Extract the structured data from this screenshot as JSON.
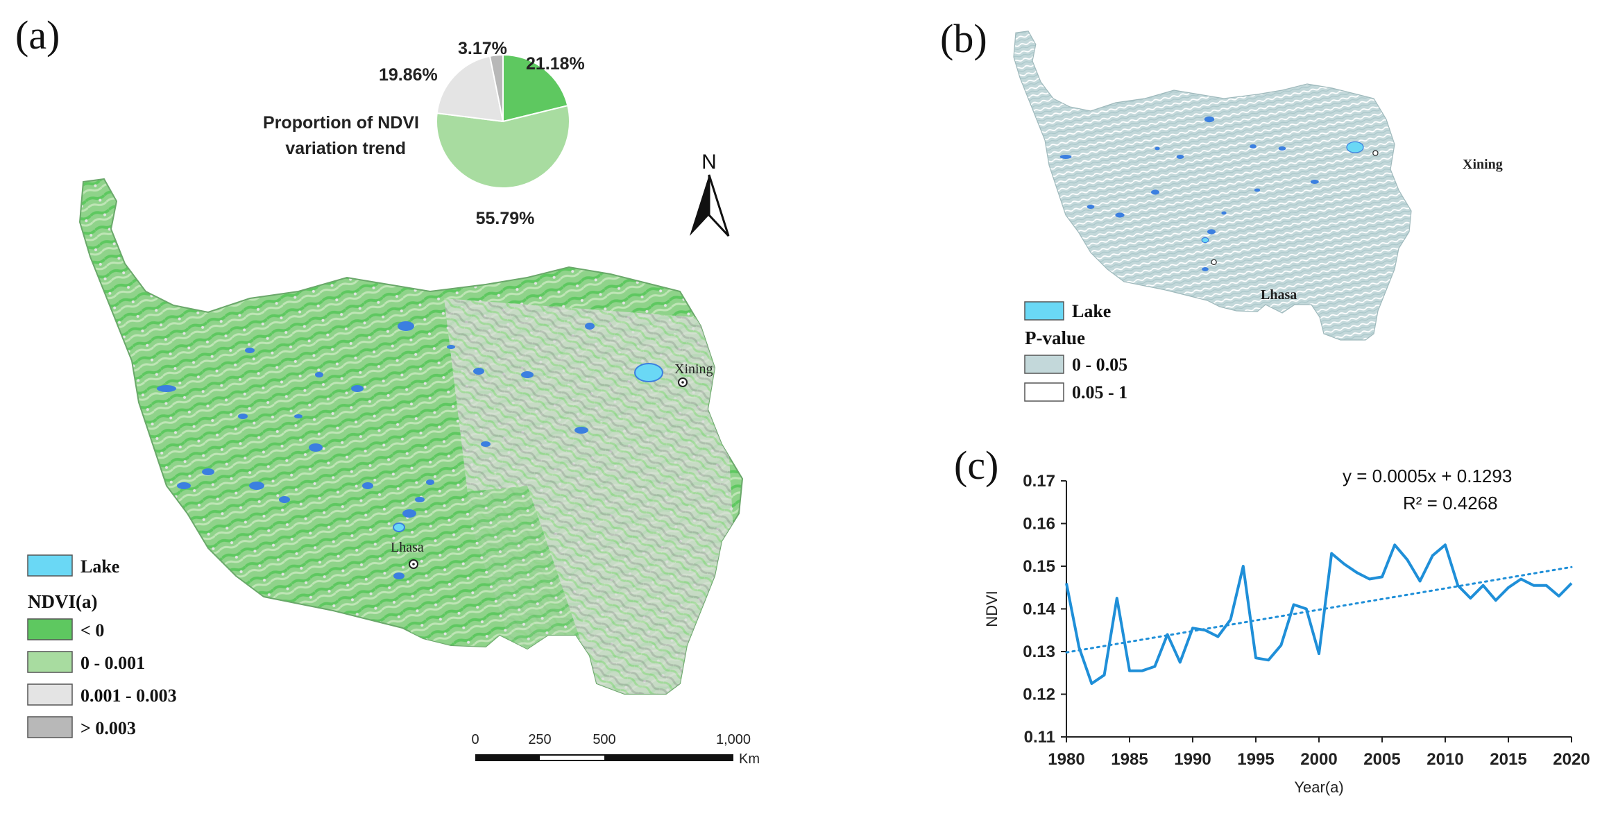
{
  "panels": {
    "a": {
      "label": "(a)",
      "pie": {
        "title_line1": "Proportion of NDVI",
        "title_line2": "variation trend",
        "slices": [
          {
            "label": "21.18%",
            "value": 21.18,
            "color": "#5ec860"
          },
          {
            "label": "55.79%",
            "value": 55.79,
            "color": "#a8dca0"
          },
          {
            "label": "19.86%",
            "value": 19.86,
            "color": "#e4e4e4"
          },
          {
            "label": "3.17%",
            "value": 3.17,
            "color": "#b8b8b8"
          }
        ]
      },
      "north_label": "N",
      "cities": {
        "xining": "Xining",
        "lhasa": "Lhasa"
      },
      "legend": {
        "lake_label": "Lake",
        "title": "NDVI(a)",
        "items": [
          {
            "label": "< 0",
            "color": "#5ec860"
          },
          {
            "label": "0 - 0.001",
            "color": "#a8dca0"
          },
          {
            "label": "0.001 - 0.003",
            "color": "#e4e4e4"
          },
          {
            "label": "> 0.003",
            "color": "#b8b8b8"
          }
        ]
      },
      "scale_bar": {
        "ticks": [
          "0",
          "250",
          "500",
          "1,000"
        ],
        "unit": "Km"
      }
    },
    "b": {
      "label": "(b)",
      "cities": {
        "xining": "Xining",
        "lhasa": "Lhasa"
      },
      "legend": {
        "lake_label": "Lake",
        "title": "P-value",
        "items": [
          {
            "label": "0 - 0.05",
            "color": "#c3d8da"
          },
          {
            "label": "0.05 - 1",
            "color": "#ffffff"
          }
        ]
      }
    },
    "c": {
      "label": "(c)"
    }
  },
  "colors": {
    "lake": "#6ad8f5",
    "lake_dark": "#3b7fe0",
    "line": "#1f8fd8"
  },
  "chart_data": {
    "type": "line",
    "title": "",
    "xlabel": "Year(a)",
    "ylabel": "NDVI",
    "xlim": [
      1980,
      2020
    ],
    "ylim": [
      0.11,
      0.17
    ],
    "x_ticks": [
      "1980",
      "1985",
      "1990",
      "1995",
      "2000",
      "2005",
      "2010",
      "2015",
      "2020"
    ],
    "y_ticks": [
      "0.11",
      "0.12",
      "0.13",
      "0.14",
      "0.15",
      "0.16",
      "0.17"
    ],
    "equation": "y = 0.0005x + 0.1293",
    "r_squared": "R² = 0.4268",
    "trend_intercept": 0.1293,
    "trend_slope": 0.0005,
    "series": [
      {
        "x": [
          1980,
          1981,
          1982,
          1983,
          1984,
          1985,
          1986,
          1987,
          1988,
          1989,
          1990,
          1991,
          1992,
          1993,
          1994,
          1995,
          1996,
          1997,
          1998,
          1999,
          2000,
          2001,
          2002,
          2003,
          2004,
          2005,
          2006,
          2007,
          2008,
          2009,
          2010,
          2011,
          2012,
          2013,
          2014,
          2015,
          2016,
          2017,
          2018,
          2019,
          2020
        ],
        "values": [
          0.146,
          0.131,
          0.1225,
          0.1245,
          0.1425,
          0.1255,
          0.1255,
          0.1265,
          0.134,
          0.1275,
          0.1355,
          0.135,
          0.1335,
          0.1375,
          0.15,
          0.1285,
          0.128,
          0.1315,
          0.141,
          0.14,
          0.1295,
          0.153,
          0.1505,
          0.1485,
          0.147,
          0.1475,
          0.155,
          0.1515,
          0.1465,
          0.1525,
          0.155,
          0.1455,
          0.1425,
          0.1455,
          0.142,
          0.145,
          0.147,
          0.1455,
          0.1455,
          0.143,
          0.146
        ]
      }
    ]
  }
}
